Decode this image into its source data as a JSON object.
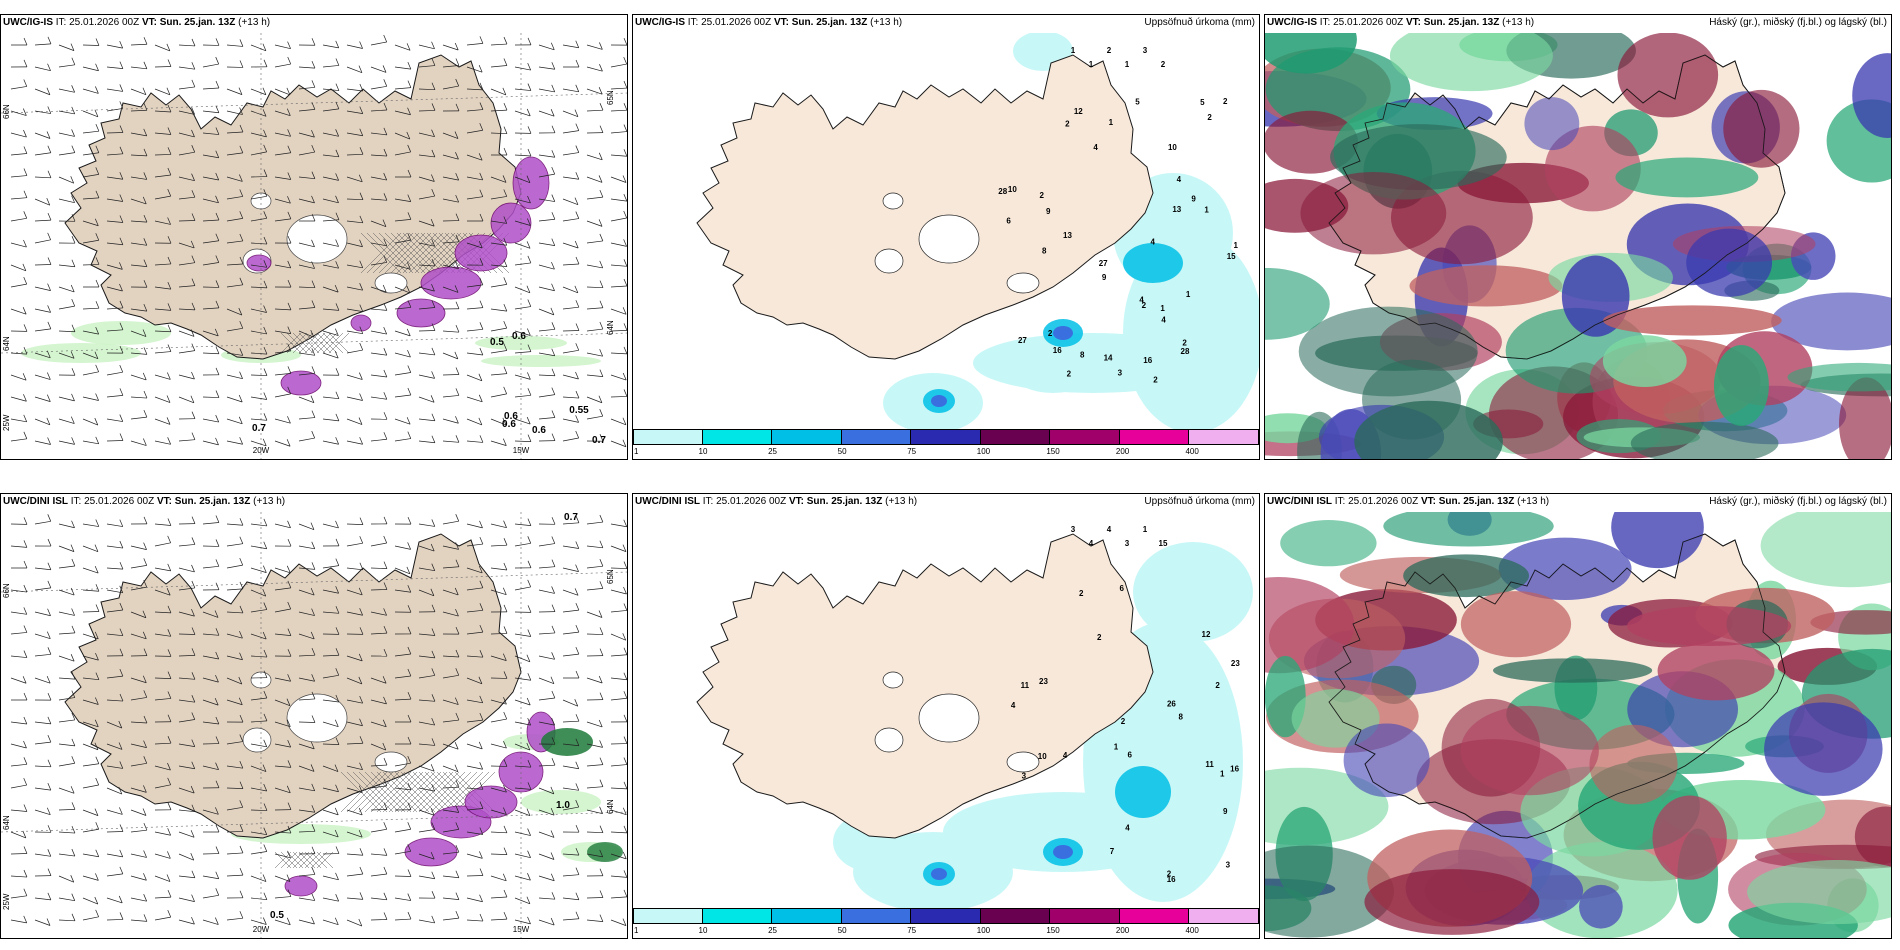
{
  "rows": [
    {
      "model": "UWC/IG-IS",
      "it_label": "IT:",
      "it_value": "25.01.2026 00Z",
      "vt_label": "VT:",
      "vt_value": "Sun. 25.jan. 13Z",
      "lead": "(+13 h)",
      "panel1": {
        "lat_labels": [
          "66N",
          "64N",
          "25W",
          "65N",
          "64N"
        ],
        "lon_labels": [
          "20W",
          "15W"
        ],
        "values": [
          "0.7",
          "0.6",
          "0.5",
          "0.6",
          "0.6",
          "0.55",
          "0.7",
          "0.6"
        ]
      },
      "panel2": {
        "values": [
          "1",
          "1",
          "2",
          "1",
          "3",
          "2",
          "2",
          "2",
          "2",
          "2",
          "9",
          "16",
          "15",
          "13",
          "9",
          "16",
          "27",
          "28",
          "27",
          "4",
          "13",
          "5",
          "6",
          "2",
          "1",
          "1",
          "2",
          "2",
          "2",
          "28",
          "4",
          "4",
          "8",
          "9",
          "3",
          "4",
          "4",
          "2",
          "10",
          "8",
          "12",
          "14",
          "5",
          "10",
          "1",
          "1",
          "1"
        ]
      }
    },
    {
      "model": "UWC/DINI ISL",
      "it_label": "IT:",
      "it_value": "25.01.2026 00Z",
      "vt_label": "VT:",
      "vt_value": "Sun. 25.jan. 13Z",
      "lead": "(+13 h)",
      "panel1": {
        "lat_labels": [
          "66N",
          "64N",
          "25W",
          "65N",
          "64N"
        ],
        "lon_labels": [
          "20W",
          "15W"
        ],
        "values": [
          "0.7",
          "1.0",
          "0.5"
        ]
      },
      "panel2": {
        "values": [
          "3",
          "4",
          "4",
          "3",
          "1",
          "15",
          "9",
          "11",
          "12",
          "2",
          "2",
          "2",
          "23",
          "10",
          "6",
          "7",
          "6",
          "26",
          "8",
          "16",
          "4",
          "11",
          "3",
          "2",
          "3",
          "4",
          "1",
          "2",
          "1",
          "4",
          "23",
          "16"
        ]
      }
    }
  ],
  "precip_title": "Uppsöfnuð úrkoma (mm)",
  "cloud_title": "Háský (gr.), miðský (fj.bl.) og lágský (bl.)",
  "colorbar": {
    "ticks": [
      "1",
      "10",
      "25",
      "50",
      "75",
      "100",
      "150",
      "200",
      "400"
    ],
    "colors": [
      "#c8f7f7",
      "#00e6e6",
      "#00bfe6",
      "#3a6fe0",
      "#2a2ab0",
      "#6a0050",
      "#a0006a",
      "#e8009a",
      "#f0b0f0"
    ]
  },
  "colors": {
    "land": "#f7e8da",
    "land_dark": "#e2d2c0",
    "coast": "#1a1a1a",
    "precip_light": "#c8f7f7",
    "purple": "#b050c8",
    "green_light": "#c9f2c3",
    "green_dark": "#1e7a3a"
  }
}
